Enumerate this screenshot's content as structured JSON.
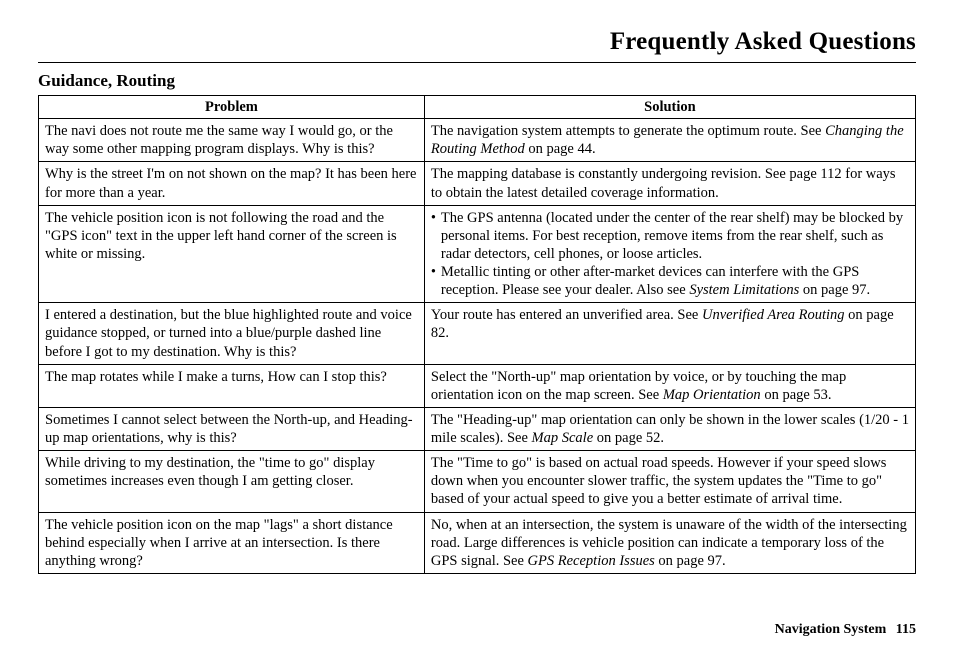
{
  "chapter_title": "Frequently Asked Questions",
  "section_title": "Guidance, Routing",
  "headers": {
    "problem": "Problem",
    "solution": "Solution"
  },
  "rows": [
    {
      "problem": "The navi does not route me the same way I would go, or the way some other mapping program displays. Why is this?",
      "solution_pre": "The navigation system attempts to generate the optimum route. See ",
      "solution_italic": "Changing the Routing Method",
      "solution_post": " on page 44."
    },
    {
      "problem": "Why is the street I'm on not shown on the map? It has been here for more than a year.",
      "solution_pre": "The mapping database is constantly undergoing revision. See page 112 for ways to obtain the latest detailed coverage information.",
      "solution_italic": "",
      "solution_post": ""
    },
    {
      "problem": "The vehicle position icon is not following the road and the \"GPS icon\" text in the upper left hand corner of the screen is white or missing.",
      "bullets": [
        {
          "pre": "The GPS antenna (located under the center of the rear shelf) may be blocked by personal items. For best reception, remove items from the rear shelf, such as radar detectors, cell phones, or loose articles.",
          "italic": "",
          "post": ""
        },
        {
          "pre": "Metallic tinting or other after-market devices can interfere with the GPS reception. Please see your dealer. Also see ",
          "italic": "System Limitations",
          "post": " on page 97."
        }
      ]
    },
    {
      "problem": "I entered a destination, but the blue highlighted route and voice guidance stopped, or turned into a blue/purple dashed line before I got to my destination. Why is this?",
      "solution_pre": "Your route has entered an unverified area. See ",
      "solution_italic": "Unverified Area Routing",
      "solution_post": " on page 82."
    },
    {
      "problem": "The map rotates while I make a turns, How can I stop this?",
      "solution_pre": "Select the \"North-up\" map orientation by voice, or by touching the map orientation icon on the map screen. See ",
      "solution_italic": "Map Orientation",
      "solution_post": " on page 53."
    },
    {
      "problem": "Sometimes I cannot select between the North-up, and Heading-up map orientations, why is this?",
      "solution_pre": "The \"Heading-up\" map orientation can only be shown in the lower scales (1/20 - 1 mile scales). See ",
      "solution_italic": "Map Scale",
      "solution_post": " on page 52."
    },
    {
      "problem": "While driving to my destination, the \"time to go\" display sometimes increases even though I am getting closer.",
      "solution_pre": "The \"Time to go\" is based on actual road speeds. However if your speed slows down when you encounter slower traffic, the system updates the \"Time to go\" based of your actual speed to give you a better estimate of arrival time.",
      "solution_italic": "",
      "solution_post": ""
    },
    {
      "problem": "The vehicle position icon on the map \"lags\" a short distance behind especially when I arrive at an intersection. Is there anything wrong?",
      "solution_pre": "No, when at an intersection, the system is unaware of the width of the intersecting road. Large differences is vehicle position can indicate a temporary loss of the GPS signal. See ",
      "solution_italic": "GPS Reception Issues",
      "solution_post": " on page 97."
    }
  ],
  "footer": {
    "label": "Navigation System",
    "page": "115"
  }
}
